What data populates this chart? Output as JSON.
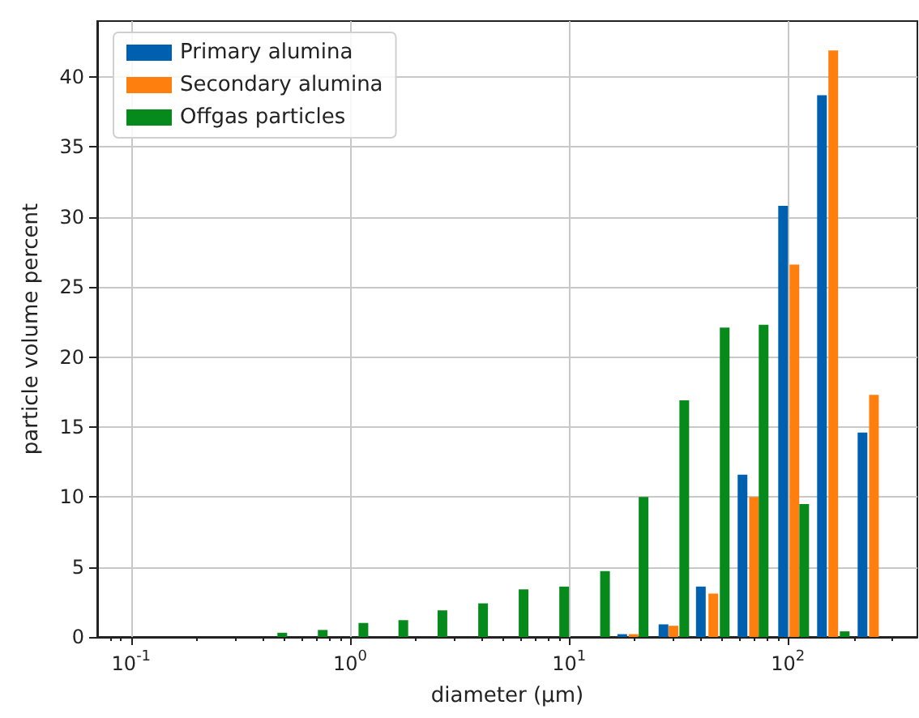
{
  "chart_data": {
    "type": "bar",
    "xlabel": "diameter (μm)",
    "ylabel": "particle volume percent",
    "log": "x",
    "xlim": [
      0.07,
      390
    ],
    "xticks": [
      {
        "value": 0.1,
        "label": "10$^{-1}$"
      },
      {
        "value": 1,
        "label": "10$^{0}$"
      },
      {
        "value": 10,
        "label": "10$^{1}$"
      },
      {
        "value": 100,
        "label": "10$^{2}$"
      }
    ],
    "ylim": [
      0,
      44
    ],
    "yticks": [
      0,
      5,
      10,
      15,
      20,
      25,
      30,
      35,
      40
    ],
    "grid": true,
    "legend": "top left",
    "series": [
      {
        "name": "Primary alumina",
        "color": "#0060b0",
        "x": [
          17.5,
          27,
          40,
          62,
          95,
          143,
          219
        ],
        "values": [
          0.2,
          0.9,
          3.6,
          11.6,
          30.8,
          38.7,
          14.6
        ]
      },
      {
        "name": "Secondary alumina",
        "color": "#ff7f0e",
        "x": [
          19.7,
          30,
          45.6,
          70,
          107,
          161,
          247
        ],
        "values": [
          0.2,
          0.8,
          3.1,
          10.0,
          26.6,
          41.9,
          17.3
        ]
      },
      {
        "name": "Offgas particles",
        "color": "#078a1c",
        "x": [
          0.49,
          0.75,
          1.15,
          1.75,
          2.64,
          4.05,
          6.2,
          9.5,
          14.6,
          21.9,
          33.6,
          51.4,
          77.4,
          118.6,
          181.6
        ],
        "values": [
          0.3,
          0.5,
          1.0,
          1.2,
          1.9,
          2.4,
          3.4,
          3.6,
          4.7,
          10.0,
          16.9,
          22.1,
          22.3,
          9.5,
          0.4
        ]
      }
    ]
  }
}
